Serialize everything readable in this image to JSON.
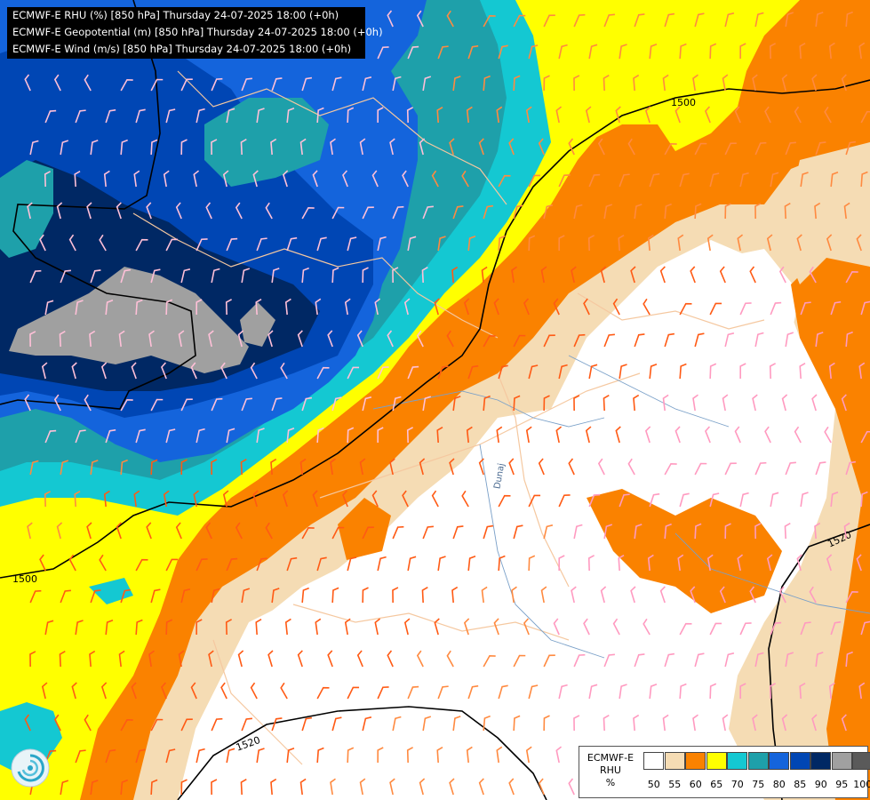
{
  "titles": [
    "ECMWF-E RHU (%) [850 hPa] Thursday 24-07-2025 18:00 (+0h)",
    "ECMWF-E Geopotential (m) [850 hPa] Thursday 24-07-2025 18:00 (+0h)",
    "ECMWF-E Wind (m/s) [850 hPa] Thursday 24-07-2025 18:00 (+0h)"
  ],
  "legend": {
    "line1": "ECMWF-E",
    "line2": "RHU",
    "line3": "%",
    "ticks": [
      "50",
      "55",
      "60",
      "65",
      "70",
      "75",
      "80",
      "85",
      "90",
      "95",
      "100"
    ],
    "colors": [
      "#ffffff",
      "#f5dcb4",
      "#fa8200",
      "#ffff00",
      "#14c8d2",
      "#1ea0aa",
      "#1464dc",
      "#0046b4",
      "#002864",
      "#a0a0a0",
      "#5a5a5a"
    ]
  },
  "contour_labels": [
    "1500",
    "1500",
    "1520",
    "1520"
  ],
  "river_label": "Dunaj",
  "logo": "weather-swirl-logo"
}
